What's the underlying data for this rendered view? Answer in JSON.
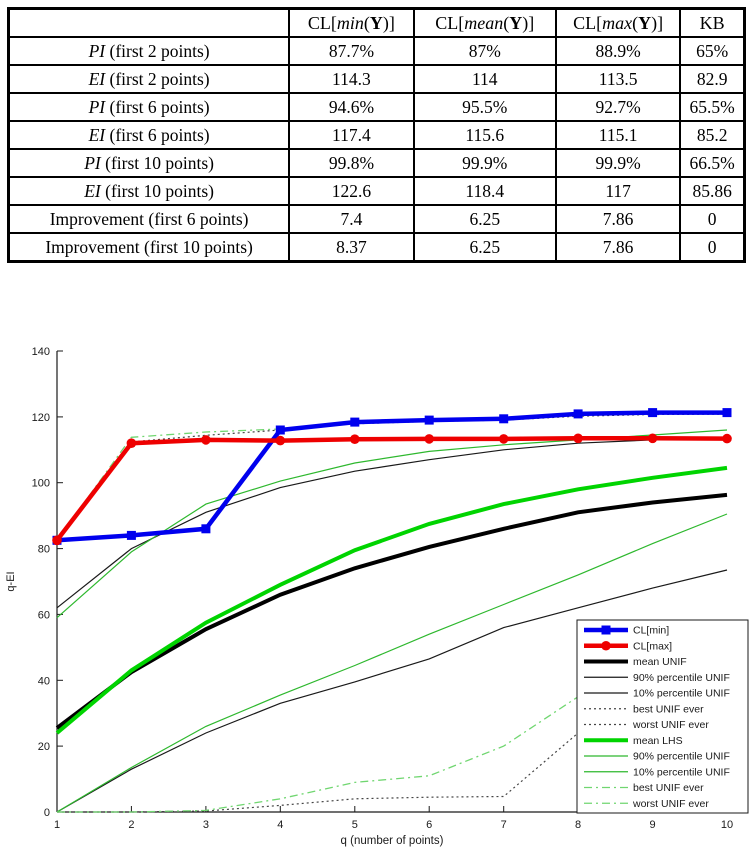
{
  "table": {
    "header": {
      "corner": "",
      "columns": [
        {
          "segments": [
            [
              "n",
              "CL["
            ],
            [
              "i",
              "min"
            ],
            [
              "n",
              "("
            ],
            [
              "b",
              "Y"
            ],
            [
              "n",
              ")]"
            ]
          ]
        },
        {
          "segments": [
            [
              "n",
              "CL["
            ],
            [
              "i",
              "mean"
            ],
            [
              "n",
              "("
            ],
            [
              "b",
              "Y"
            ],
            [
              "n",
              ")]"
            ]
          ]
        },
        {
          "segments": [
            [
              "n",
              "CL["
            ],
            [
              "i",
              "max"
            ],
            [
              "n",
              "("
            ],
            [
              "b",
              "Y"
            ],
            [
              "n",
              ")]"
            ]
          ]
        },
        {
          "segments": [
            [
              "n",
              "KB"
            ]
          ]
        }
      ]
    },
    "rows": [
      {
        "label": [
          [
            "i",
            "PI"
          ],
          [
            "n",
            " (first 2 points)"
          ]
        ],
        "values": [
          "87.7%",
          "87%",
          "88.9%",
          "65%"
        ]
      },
      {
        "label": [
          [
            "i",
            "EI"
          ],
          [
            "n",
            " (first 2 points)"
          ]
        ],
        "values": [
          "114.3",
          "114",
          "113.5",
          "82.9"
        ]
      },
      {
        "label": [
          [
            "i",
            "PI"
          ],
          [
            "n",
            " (first 6 points)"
          ]
        ],
        "values": [
          "94.6%",
          "95.5%",
          "92.7%",
          "65.5%"
        ]
      },
      {
        "label": [
          [
            "i",
            "EI"
          ],
          [
            "n",
            " (first 6 points)"
          ]
        ],
        "values": [
          "117.4",
          "115.6",
          "115.1",
          "85.2"
        ]
      },
      {
        "label": [
          [
            "i",
            "PI"
          ],
          [
            "n",
            " (first 10 points)"
          ]
        ],
        "values": [
          "99.8%",
          "99.9%",
          "99.9%",
          "66.5%"
        ]
      },
      {
        "label": [
          [
            "i",
            "EI"
          ],
          [
            "n",
            " (first 10 points)"
          ]
        ],
        "values": [
          "122.6",
          "118.4",
          "117",
          "85.86"
        ]
      },
      {
        "label": [
          [
            "n",
            "Improvement (first 6 points)"
          ]
        ],
        "values": [
          "7.4",
          "6.25",
          "7.86",
          "0"
        ]
      },
      {
        "label": [
          [
            "n",
            "Improvement (first 10 points)"
          ]
        ],
        "values": [
          "8.37",
          "6.25",
          "7.86",
          "0"
        ]
      }
    ]
  },
  "chart_data": {
    "type": "line",
    "title": "",
    "xlabel": "q (number of points)",
    "ylabel": "q-EI",
    "x": [
      1,
      2,
      3,
      4,
      5,
      6,
      7,
      8,
      9,
      10
    ],
    "xlim": [
      1,
      10
    ],
    "ylim": [
      0,
      140
    ],
    "xticks": [
      1,
      2,
      3,
      4,
      5,
      6,
      7,
      8,
      9,
      10
    ],
    "yticks": [
      0,
      20,
      40,
      60,
      80,
      100,
      120,
      140
    ],
    "grid": false,
    "legend_position": "bottom-right",
    "series": [
      {
        "name": "CL[min]",
        "color": "#0000ee",
        "width": 4.5,
        "style": "solid",
        "marker": "square",
        "values": [
          82.5,
          84,
          86,
          116,
          118.4,
          119,
          119.4,
          120.9,
          121.3,
          121.3
        ]
      },
      {
        "name": "CL[max]",
        "color": "#ee0000",
        "width": 4.5,
        "style": "solid",
        "marker": "circle",
        "values": [
          82.5,
          112,
          113,
          112.8,
          113.2,
          113.3,
          113.3,
          113.5,
          113.5,
          113.4
        ]
      },
      {
        "name": "mean UNIF",
        "color": "#000000",
        "width": 4,
        "style": "solid",
        "marker": "none",
        "values": [
          25.5,
          42.5,
          55.5,
          66,
          74,
          80.5,
          86,
          91,
          94,
          96.3
        ]
      },
      {
        "name": "90% percentile UNIF",
        "color": "#1a1a1a",
        "width": 1.2,
        "style": "solid",
        "marker": "none",
        "values": [
          62,
          80,
          91,
          98.5,
          103.5,
          107,
          110,
          112,
          113,
          113.5
        ]
      },
      {
        "name": "10% percentile UNIF",
        "color": "#1a1a1a",
        "width": 1.2,
        "style": "solid",
        "marker": "none",
        "values": [
          0,
          13,
          24,
          33,
          39.5,
          46.5,
          56,
          62,
          68,
          73.5
        ]
      },
      {
        "name": "best UNIF ever",
        "color": "#444444",
        "width": 1.2,
        "style": "dotted",
        "marker": "none",
        "values": [
          82.5,
          112.4,
          114.4,
          116,
          117.9,
          118.6,
          119,
          120.2,
          120.7,
          120.8
        ]
      },
      {
        "name": "worst UNIF ever",
        "color": "#444444",
        "width": 1.2,
        "style": "dotted",
        "marker": "none",
        "values": [
          0,
          0,
          0.3,
          2,
          4,
          4.5,
          4.7,
          24,
          29,
          34
        ]
      },
      {
        "name": "mean LHS",
        "color": "#00d400",
        "width": 4,
        "style": "solid",
        "marker": "none",
        "values": [
          24,
          43,
          57.5,
          69,
          79.5,
          87.5,
          93.5,
          98,
          101.5,
          104.5
        ]
      },
      {
        "name": "90% percentile UNIF",
        "color": "#2eb82e",
        "width": 1.2,
        "style": "solid",
        "marker": "none",
        "values": [
          59,
          79,
          93.5,
          100.5,
          106,
          109.5,
          111.5,
          113,
          114.5,
          116
        ]
      },
      {
        "name": "10% percentile UNIF",
        "color": "#2eb82e",
        "width": 1.2,
        "style": "solid",
        "marker": "none",
        "values": [
          0,
          13.5,
          26,
          35.5,
          44.5,
          54,
          63,
          72,
          81.5,
          90.5
        ]
      },
      {
        "name": "best UNIF ever",
        "color": "#70d670",
        "width": 1.3,
        "style": "dashdot",
        "marker": "none",
        "values": [
          82.5,
          113.8,
          115.4,
          116.3,
          118.6,
          119.2,
          119.6,
          120.9,
          121.4,
          121.4
        ]
      },
      {
        "name": "worst UNIF ever",
        "color": "#70d670",
        "width": 1.3,
        "style": "dashdot",
        "marker": "none",
        "values": [
          0,
          0,
          0.5,
          4,
          9,
          11,
          20,
          35,
          39,
          43
        ]
      }
    ]
  }
}
